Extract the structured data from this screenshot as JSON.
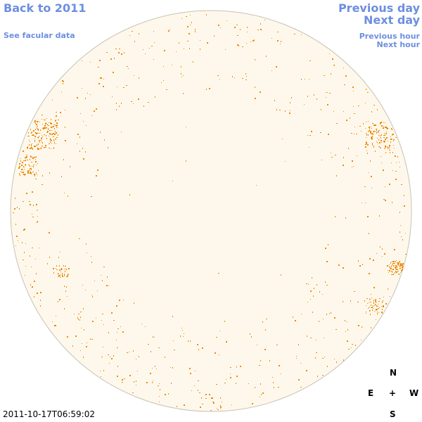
{
  "nav": {
    "back_label": "Back to 2011",
    "facular_label": "See facular data",
    "previous_day_label": "Previous day",
    "next_day_label": "Next day",
    "previous_hour_label": "Previous hour",
    "next_hour_label": "Next hour"
  },
  "timestamp": "2011-10-17T06:59:02",
  "compass": {
    "north": "N",
    "east": "E",
    "center": "+",
    "west": "W",
    "south": "S"
  },
  "colors": {
    "link": "#6d8fe0",
    "disk_fill": "#fef8ec",
    "disk_stroke": "#c8c2b4",
    "feature": "#ee8800"
  }
}
